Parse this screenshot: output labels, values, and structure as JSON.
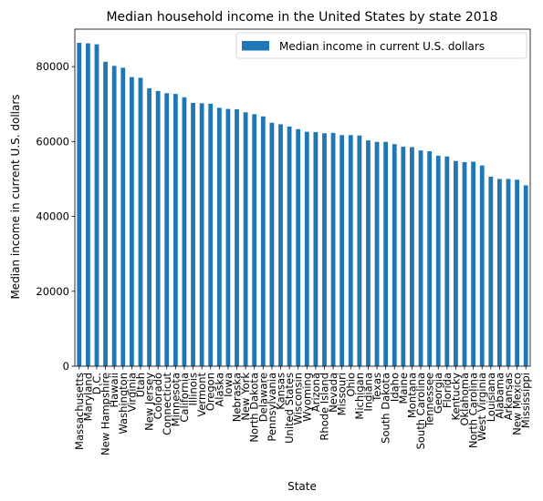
{
  "chart_data": {
    "type": "bar",
    "title": "Median household income in the United States by state 2018",
    "xlabel": "State",
    "ylabel": "Median income in current U.S. dollars",
    "legend_position": "top-right",
    "grid": false,
    "ylim": [
      0,
      90000
    ],
    "yticks": [
      "0",
      "20000",
      "40000",
      "60000",
      "80000"
    ],
    "color": "#1f77b4",
    "categories": [
      "Massachusetts",
      "Maryland",
      "D.C.",
      "New Hampshire",
      "Hawaii",
      "Washington",
      "Virginia",
      "Utah",
      "New Jersey",
      "Colorado",
      "Connecticut",
      "Minnesota",
      "California",
      "Illinois",
      "Vermont",
      "Oregon",
      "Alaska",
      "Iowa",
      "Nebraska",
      "New York",
      "North Dakota",
      "Delaware",
      "Pennsylvania",
      "Kansas",
      "United States",
      "Wisconsin",
      "Wyoming",
      "Arizona",
      "Rhode Island",
      "Nevada",
      "Missouri",
      "Ohio",
      "Michigan",
      "Indiana",
      "Texas",
      "South Dakota",
      "Idaho",
      "Maine",
      "Montana",
      "South Carolina",
      "Tennessee",
      "Georgia",
      "Florida",
      "Kentucky",
      "Oklahoma",
      "North Carolina",
      "West Virginia",
      "Louisiana",
      "Alabama",
      "Arkansas",
      "New Mexico",
      "Mississippi"
    ],
    "series": [
      {
        "name": "Median income in current U.S. dollars",
        "values": [
          86350,
          86220,
          85950,
          81300,
          80200,
          79700,
          77200,
          77000,
          74200,
          73500,
          72900,
          72700,
          71800,
          70300,
          70200,
          70100,
          69000,
          68700,
          68600,
          67800,
          67300,
          66700,
          65000,
          64600,
          64000,
          63300,
          62600,
          62500,
          62200,
          62300,
          61700,
          61700,
          61600,
          60300,
          59900,
          59900,
          59300,
          58600,
          58500,
          57600,
          57400,
          56200,
          56000,
          54800,
          54500,
          54600,
          53600,
          50600,
          50000,
          50000,
          49800,
          48300
        ]
      }
    ]
  }
}
